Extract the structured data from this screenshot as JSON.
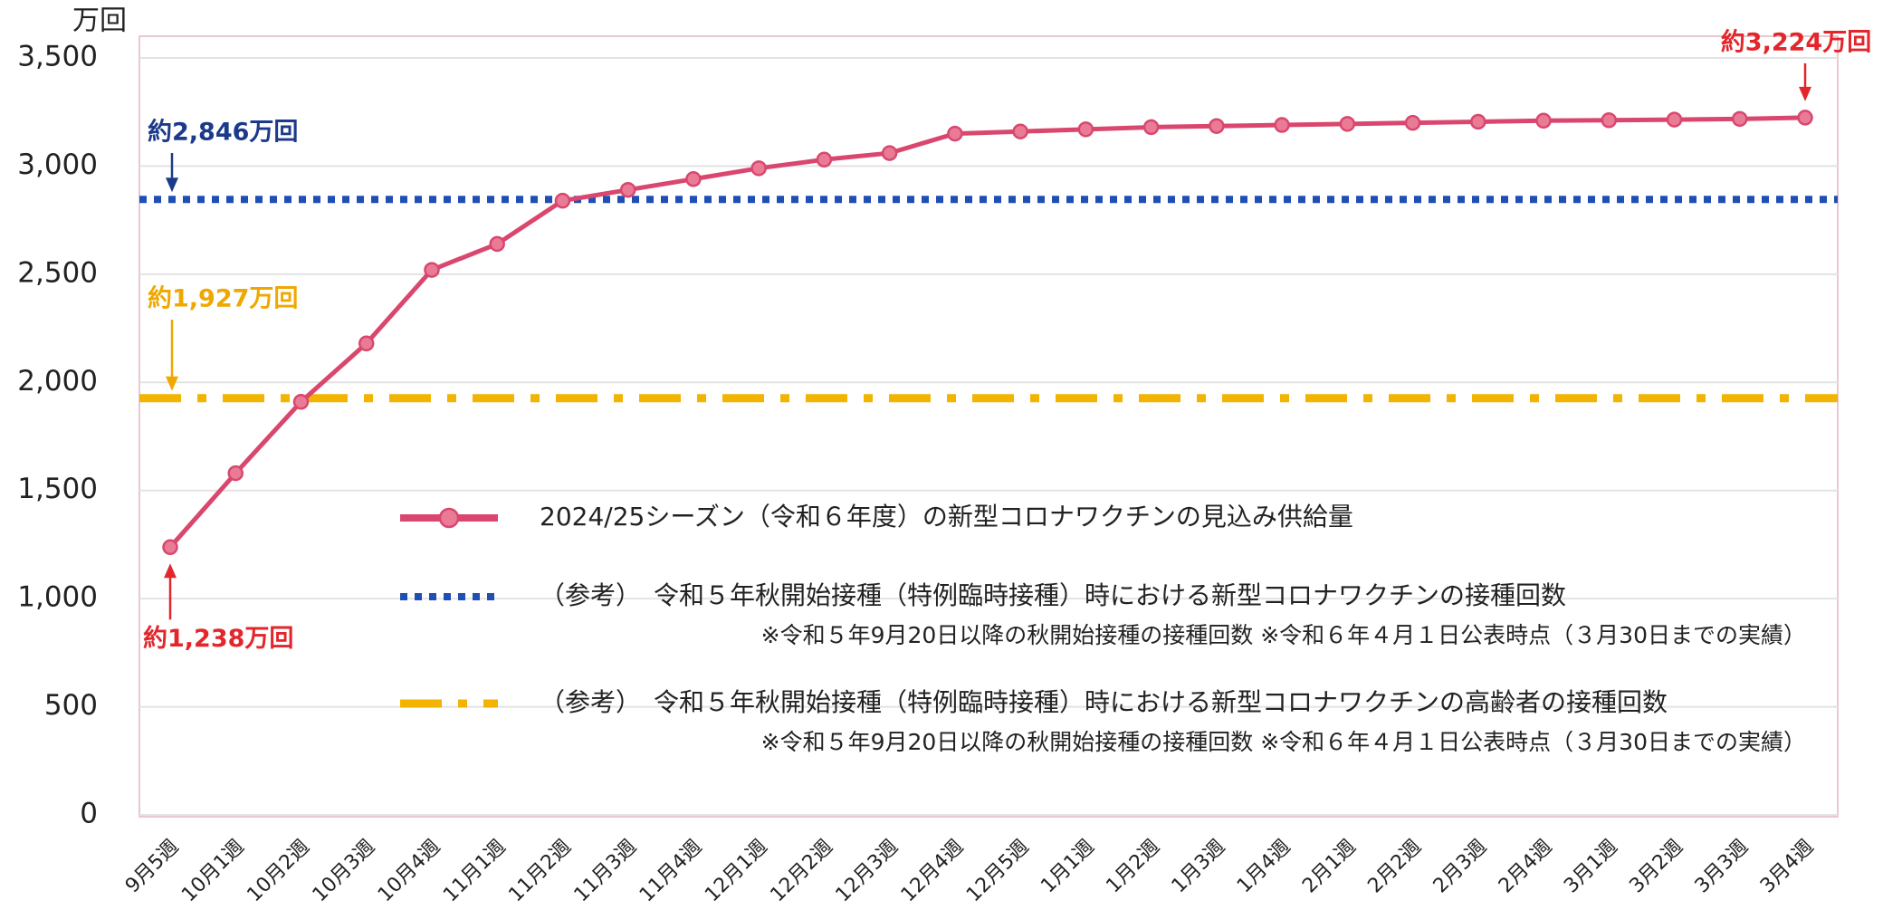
{
  "chart_data": {
    "type": "line",
    "y_unit": "万回",
    "categories": [
      "9月5週",
      "10月1週",
      "10月2週",
      "10月3週",
      "10月4週",
      "11月1週",
      "11月2週",
      "11月3週",
      "11月4週",
      "12月1週",
      "12月2週",
      "12月3週",
      "12月4週",
      "12月5週",
      "1月1週",
      "1月2週",
      "1月3週",
      "1月4週",
      "2月1週",
      "2月2週",
      "2月3週",
      "2月4週",
      "3月1週",
      "3月2週",
      "3月3週",
      "3月4週"
    ],
    "series": [
      {
        "name": "2024/25シーズン（令和６年度）の新型コロナワクチンの見込み供給量",
        "color": "#d9476e",
        "values": [
          1238,
          1580,
          1910,
          2180,
          2520,
          2640,
          2840,
          2890,
          2940,
          2990,
          3030,
          3060,
          3150,
          3160,
          3170,
          3180,
          3185,
          3190,
          3195,
          3200,
          3205,
          3210,
          3212,
          3215,
          3218,
          3224
        ],
        "value_labels": [
          "約1,238万回",
          null,
          null,
          null,
          null,
          null,
          null,
          null,
          null,
          null,
          null,
          null,
          null,
          null,
          null,
          null,
          null,
          null,
          null,
          null,
          null,
          null,
          null,
          null,
          null,
          "約3,224万回"
        ]
      }
    ],
    "reference_lines": [
      {
        "name": "（参考）　令和５年秋開始接種（特例臨時接種）時における新型コロナワクチンの接種回数",
        "value": 2846,
        "label": "約2,846万回",
        "note": "※令和５年9月20日以降の秋開始接種の接種回数 ※令和６年４月１日公表時点（３月30日までの実績）",
        "color": "#1f4fb5",
        "style": "dotted"
      },
      {
        "name": "（参考）　令和５年秋開始接種（特例臨時接種）時における新型コロナワクチンの高齢者の接種回数",
        "value": 1927,
        "label": "約1,927万回",
        "note": "※令和５年9月20日以降の秋開始接種の接種回数 ※令和６年４月１日公表時点（３月30日までの実績）",
        "color": "#f2b400",
        "style": "dashdot"
      }
    ],
    "ylim": [
      0,
      3500
    ],
    "yticks": [
      0,
      500,
      {
        "value": 1000,
        "label": "1,000"
      },
      {
        "value": 1500,
        "label": "1,500"
      },
      {
        "value": 2000,
        "label": "2,000"
      },
      {
        "value": 2500,
        "label": "2,500"
      },
      {
        "value": 3000,
        "label": "3,000"
      },
      {
        "value": 3500,
        "label": "3,500"
      }
    ],
    "grid": true
  }
}
